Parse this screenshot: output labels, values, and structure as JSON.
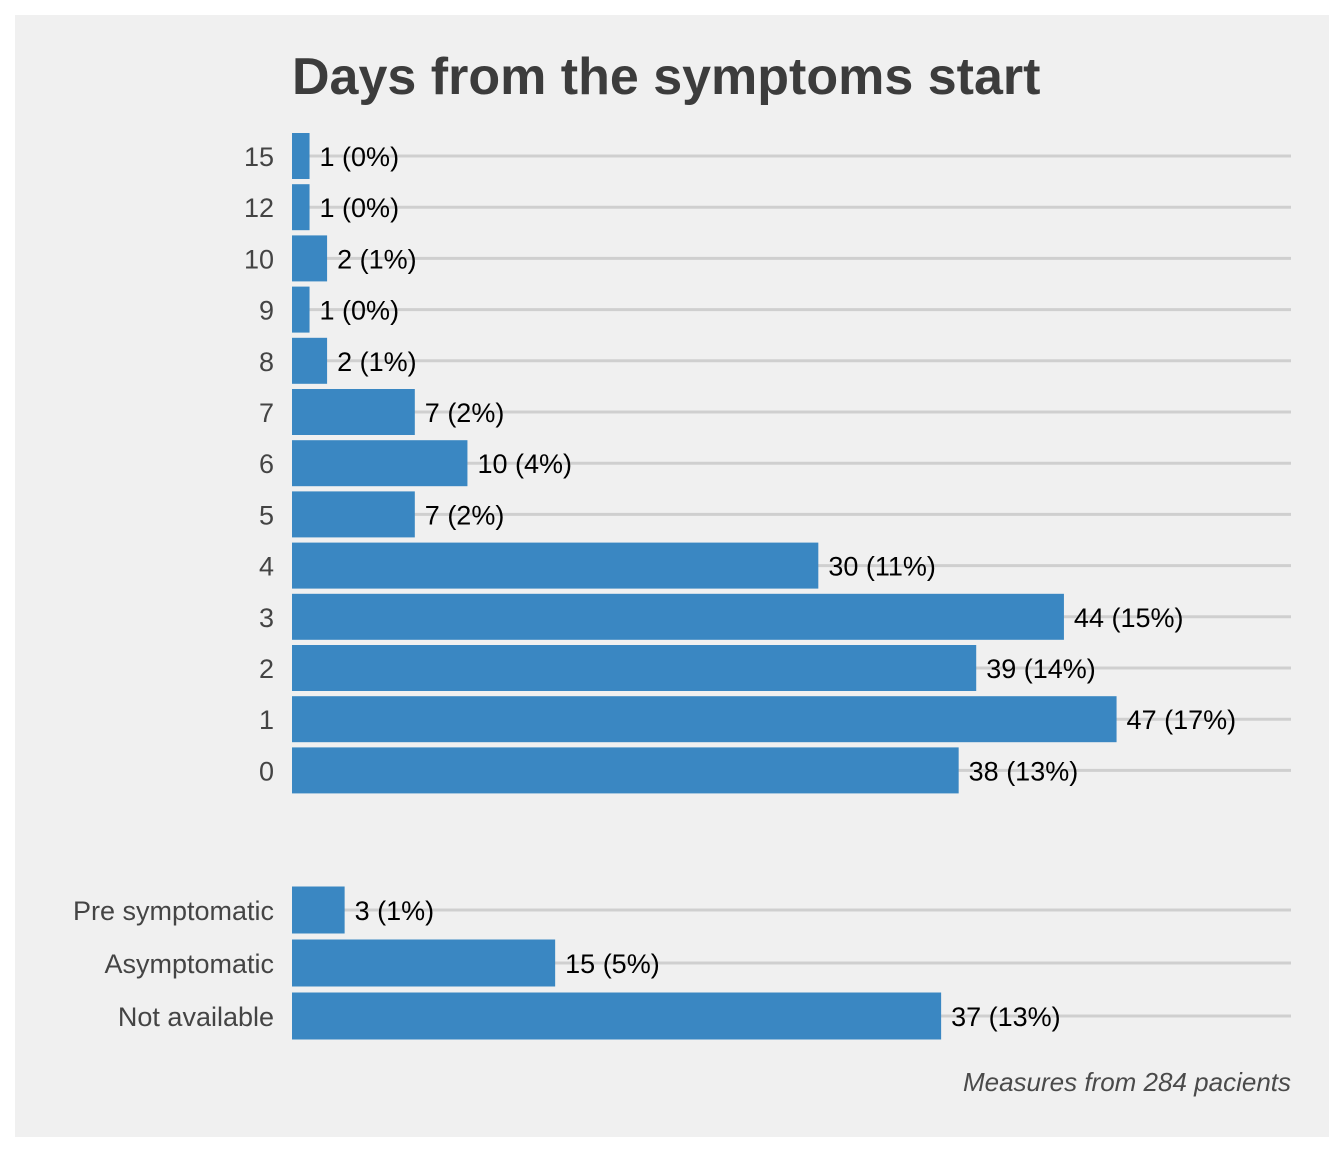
{
  "chart_data": [
    {
      "type": "bar",
      "orientation": "horizontal",
      "title": "Days from the symptoms start",
      "categories": [
        "15",
        "12",
        "10",
        "9",
        "8",
        "7",
        "6",
        "5",
        "4",
        "3",
        "2",
        "1",
        "0"
      ],
      "values": [
        1,
        1,
        2,
        1,
        2,
        7,
        10,
        7,
        30,
        44,
        39,
        47,
        38
      ],
      "labels": [
        "1 (0%)",
        "1 (0%)",
        "2 (1%)",
        "1 (0%)",
        "2 (1%)",
        "7 (2%)",
        "10 (4%)",
        "7 (2%)",
        "30 (11%)",
        "44 (15%)",
        "39 (14%)",
        "47 (17%)",
        "38 (13%)"
      ],
      "xlim": [
        0,
        57
      ],
      "grid": true,
      "color": "#3a87c2"
    },
    {
      "type": "bar",
      "orientation": "horizontal",
      "categories": [
        "Pre symptomatic",
        "Asymptomatic",
        "Not available"
      ],
      "values": [
        3,
        15,
        37
      ],
      "labels": [
        "3 (1%)",
        "15 (5%)",
        "37 (13%)"
      ],
      "xlim": [
        0,
        57
      ],
      "grid": true,
      "color": "#3a87c2"
    }
  ],
  "caption": "Measures from 284 pacients",
  "colors": {
    "background": "#f0f0f0",
    "bar": "#3a87c2",
    "grid": "#cfcfcf"
  }
}
